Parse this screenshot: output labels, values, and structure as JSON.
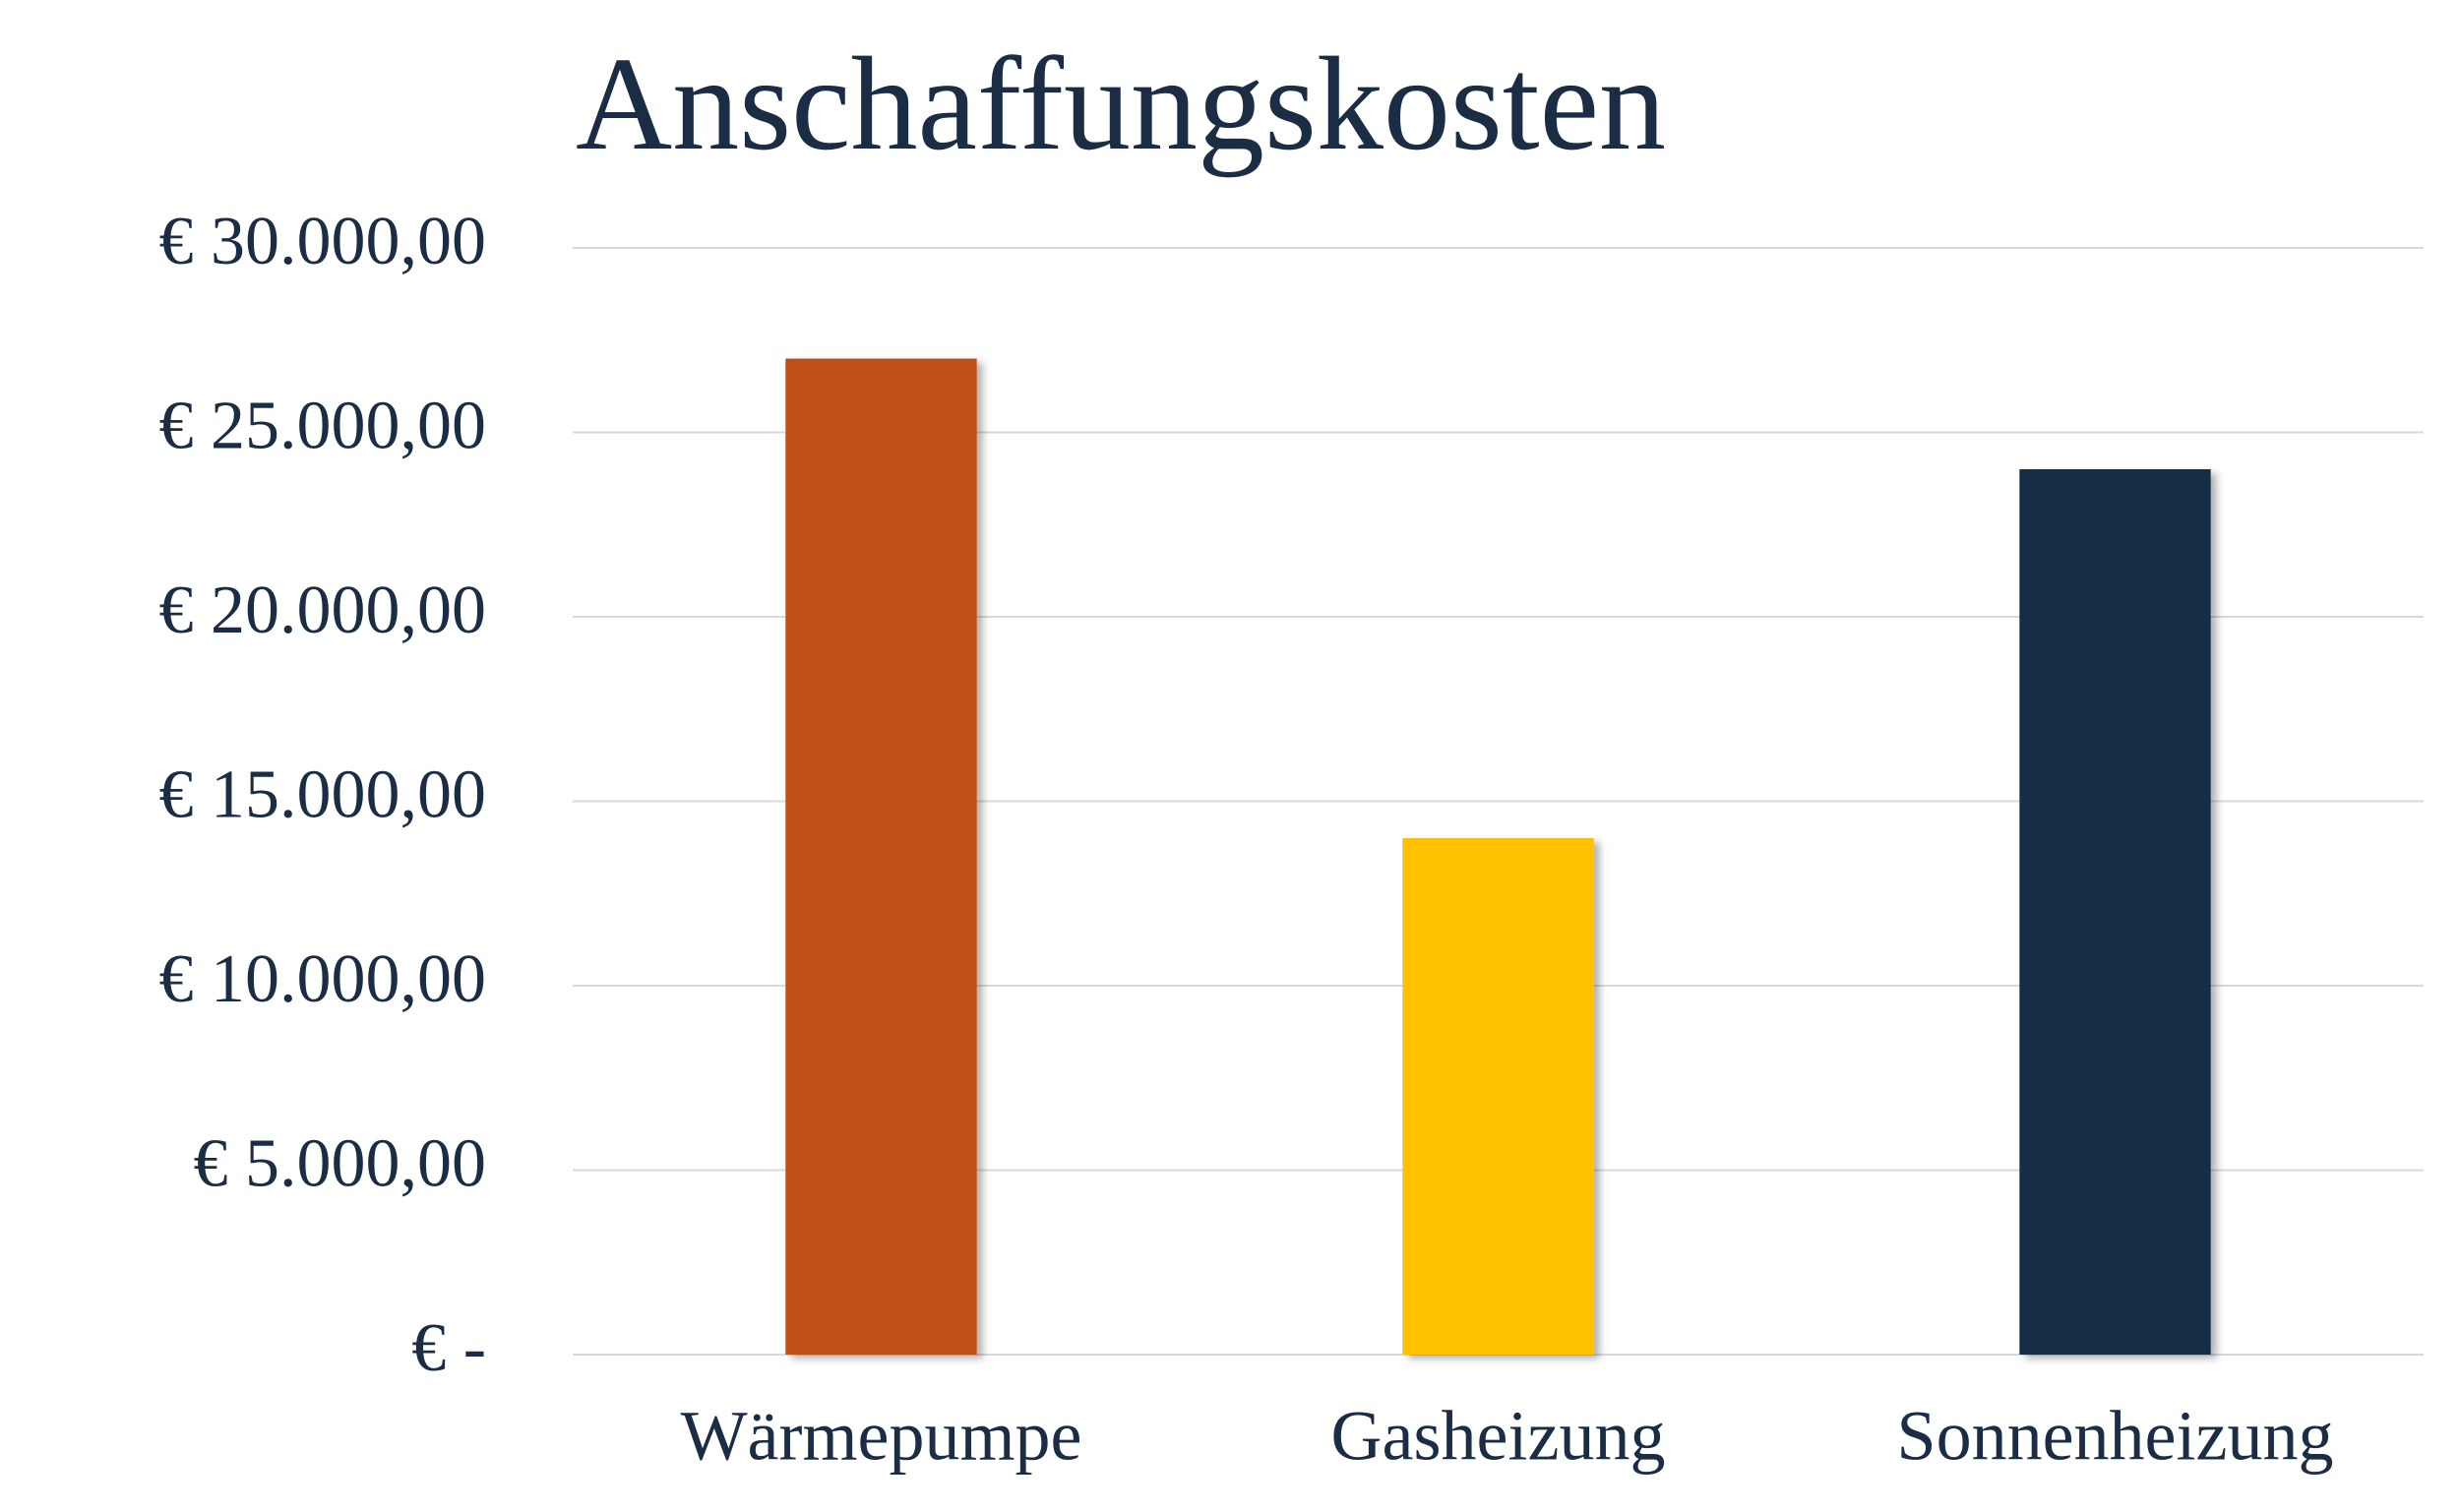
{
  "chart_data": {
    "type": "bar",
    "title": "Anschaffungskosten",
    "categories": [
      "Wärmepumpe",
      "Gasheizung",
      "Sonnenheizung"
    ],
    "values": [
      27000,
      14000,
      24000
    ],
    "colors": [
      "#bf5016",
      "#ffc000",
      "#182e45"
    ],
    "ylim": [
      0,
      30000
    ],
    "yticks": [
      {
        "value": 0,
        "label": "€ -"
      },
      {
        "value": 5000,
        "label": "€ 5.000,00"
      },
      {
        "value": 10000,
        "label": "€ 10.000,00"
      },
      {
        "value": 15000,
        "label": "€ 15.000,00"
      },
      {
        "value": 20000,
        "label": "€ 20.000,00"
      },
      {
        "value": 25000,
        "label": "€ 25.000,00"
      },
      {
        "value": 30000,
        "label": "€ 30.000,00"
      }
    ],
    "grid": true
  }
}
